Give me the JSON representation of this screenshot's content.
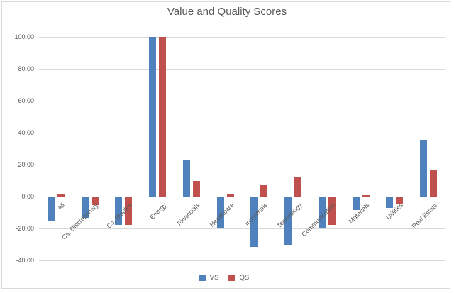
{
  "chart_data": {
    "type": "bar",
    "title": "Value and Quality Scores",
    "categories": [
      "All",
      "Cs. Discretionary",
      "Cs. Staples",
      "Energy",
      "Financials",
      "Healthcare",
      "Industrials",
      "Technology",
      "Communication",
      "Materials",
      "Utilities",
      "Real Estate"
    ],
    "series": [
      {
        "name": "VS",
        "color": "#4F81BD",
        "values": [
          -15,
          -13,
          -17.5,
          100,
          23,
          -19,
          -31,
          -30,
          -19,
          -8,
          -6.5,
          35
        ]
      },
      {
        "name": "QS",
        "color": "#C0504D",
        "values": [
          2,
          -5,
          -17.5,
          100,
          10,
          1.3,
          7,
          12,
          -17.5,
          0.8,
          -4,
          16.5
        ]
      }
    ],
    "ylim": [
      -40,
      100
    ],
    "ytick_step": 20,
    "ytick_labels": [
      "100.00",
      "80.00",
      "60.00",
      "40.00",
      "20.00",
      "0.00",
      "-20.00",
      "-40.00"
    ],
    "grid": true,
    "legend_position": "bottom",
    "colors": {
      "grid": "#D9D9D9",
      "axis_text": "#595959",
      "title_text": "#595959"
    }
  }
}
